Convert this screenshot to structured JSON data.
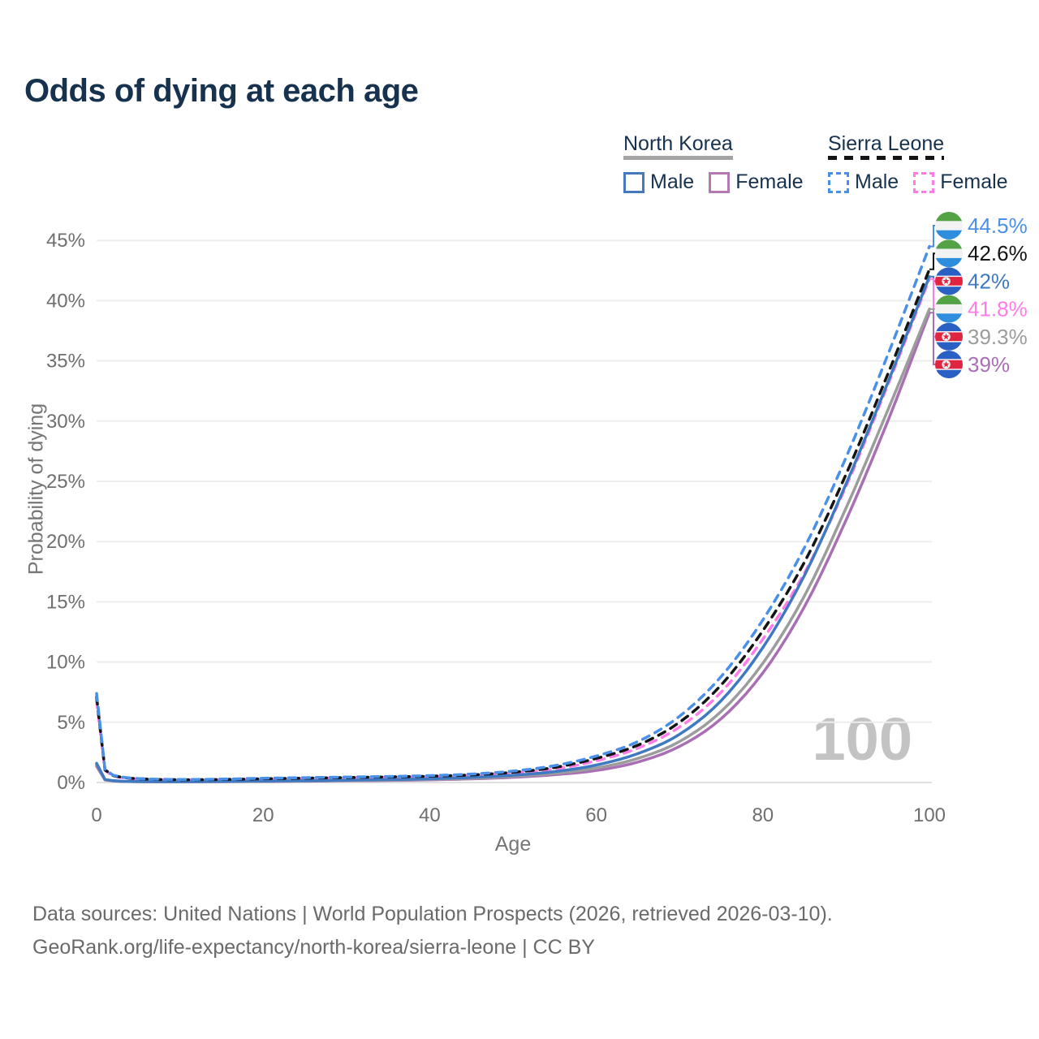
{
  "title": "Odds of dying at each age",
  "watermark": "100",
  "legend": {
    "groups": [
      {
        "label": "North Korea",
        "line_style": "solid",
        "underline_color": "#a3a3a3",
        "items": [
          {
            "label": "Male",
            "color": "#4479bd",
            "dashed": false
          },
          {
            "label": "Female",
            "color": "#b478b2",
            "dashed": false
          }
        ]
      },
      {
        "label": "Sierra Leone",
        "line_style": "dashed",
        "underline_color": "#141414",
        "items": [
          {
            "label": "Male",
            "color": "#4a90e8",
            "dashed": true
          },
          {
            "label": "Female",
            "color": "#ff7ce8",
            "dashed": true
          }
        ]
      }
    ]
  },
  "footer": {
    "line1": "Data sources: United Nations | World Population Prospects (2026, retrieved 2026-03-10).",
    "line2": "GeoRank.org/life-expectancy/north-korea/sierra-leone | CC BY"
  },
  "chart_data": {
    "type": "line",
    "title": "Odds of dying at each age",
    "xlabel": "Age",
    "ylabel": "Probability of dying",
    "xlim": [
      0,
      100
    ],
    "ylim": [
      0,
      47
    ],
    "x_ticks": [
      0,
      20,
      40,
      60,
      80,
      100
    ],
    "y_ticks": [
      0,
      5,
      10,
      15,
      20,
      25,
      30,
      35,
      40,
      45
    ],
    "y_tick_suffix": "%",
    "grid": "horizontal",
    "legend_position": "top-right",
    "x": [
      0,
      1,
      2,
      3,
      4,
      5,
      10,
      15,
      20,
      25,
      30,
      35,
      40,
      45,
      50,
      55,
      60,
      65,
      70,
      75,
      80,
      85,
      90,
      95,
      100
    ],
    "series": [
      {
        "name": "Sierra Leone — Male",
        "country": "Sierra Leone",
        "sex": "Male",
        "color": "#4a90e8",
        "dashed": true,
        "flag": "sierra-leone",
        "end_label": "44.5%",
        "end_value": 44.5,
        "values": [
          7.4,
          1.1,
          0.6,
          0.45,
          0.38,
          0.33,
          0.25,
          0.28,
          0.35,
          0.4,
          0.45,
          0.5,
          0.57,
          0.7,
          0.95,
          1.4,
          2.2,
          3.4,
          5.5,
          8.8,
          13.5,
          19.5,
          27.0,
          35.5,
          44.5
        ]
      },
      {
        "name": "Sierra Leone — Both sexes",
        "country": "Sierra Leone",
        "sex": "Both",
        "color": "#141414",
        "dashed": true,
        "flag": "sierra-leone",
        "end_label": "42.6%",
        "end_value": 42.6,
        "values": [
          7.1,
          1.05,
          0.57,
          0.43,
          0.36,
          0.31,
          0.23,
          0.25,
          0.31,
          0.36,
          0.41,
          0.46,
          0.52,
          0.63,
          0.85,
          1.25,
          2.0,
          3.1,
          5.0,
          8.1,
          12.6,
          18.3,
          25.6,
          33.9,
          42.6
        ]
      },
      {
        "name": "North Korea — Male",
        "country": "North Korea",
        "sex": "Male",
        "color": "#3e79c2",
        "dashed": false,
        "flag": "north-korea",
        "end_label": "42%",
        "end_value": 42.0,
        "values": [
          1.6,
          0.25,
          0.15,
          0.11,
          0.09,
          0.08,
          0.07,
          0.09,
          0.12,
          0.15,
          0.19,
          0.24,
          0.31,
          0.42,
          0.6,
          0.9,
          1.45,
          2.4,
          4.0,
          6.8,
          11.2,
          17.2,
          24.8,
          33.2,
          42.0
        ]
      },
      {
        "name": "Sierra Leone — Female",
        "country": "Sierra Leone",
        "sex": "Female",
        "color": "#ff7ce8",
        "dashed": true,
        "flag": "sierra-leone",
        "end_label": "41.8%",
        "end_value": 41.8,
        "values": [
          6.8,
          1.0,
          0.54,
          0.41,
          0.34,
          0.29,
          0.21,
          0.23,
          0.27,
          0.32,
          0.37,
          0.42,
          0.48,
          0.58,
          0.78,
          1.12,
          1.8,
          2.85,
          4.6,
          7.5,
          11.9,
          17.4,
          24.6,
          33.0,
          41.8
        ]
      },
      {
        "name": "North Korea — Both sexes",
        "country": "North Korea",
        "sex": "Both",
        "color": "#9c9c9c",
        "dashed": false,
        "flag": "north-korea",
        "end_label": "39.3%",
        "end_value": 39.3,
        "values": [
          1.5,
          0.23,
          0.14,
          0.1,
          0.08,
          0.07,
          0.06,
          0.08,
          0.1,
          0.13,
          0.16,
          0.2,
          0.26,
          0.35,
          0.5,
          0.75,
          1.2,
          2.0,
          3.4,
          5.9,
          9.9,
          15.5,
          22.8,
          30.9,
          39.3
        ]
      },
      {
        "name": "North Korea — Female",
        "country": "North Korea",
        "sex": "Female",
        "color": "#aa6eb5",
        "dashed": false,
        "flag": "north-korea",
        "end_label": "39%",
        "end_value": 39.0,
        "values": [
          1.35,
          0.21,
          0.13,
          0.09,
          0.08,
          0.065,
          0.055,
          0.07,
          0.085,
          0.11,
          0.14,
          0.17,
          0.22,
          0.3,
          0.43,
          0.65,
          1.0,
          1.7,
          3.0,
          5.3,
          9.1,
          14.6,
          21.8,
          30.0,
          39.0
        ]
      }
    ],
    "flag_colors": {
      "sierra-leone": {
        "green": "#53a346",
        "white": "#f2f2f2",
        "blue": "#2f8ddd"
      },
      "north-korea": {
        "blue": "#2a5fc4",
        "white": "#f2f2f2",
        "red": "#e02540"
      }
    }
  }
}
